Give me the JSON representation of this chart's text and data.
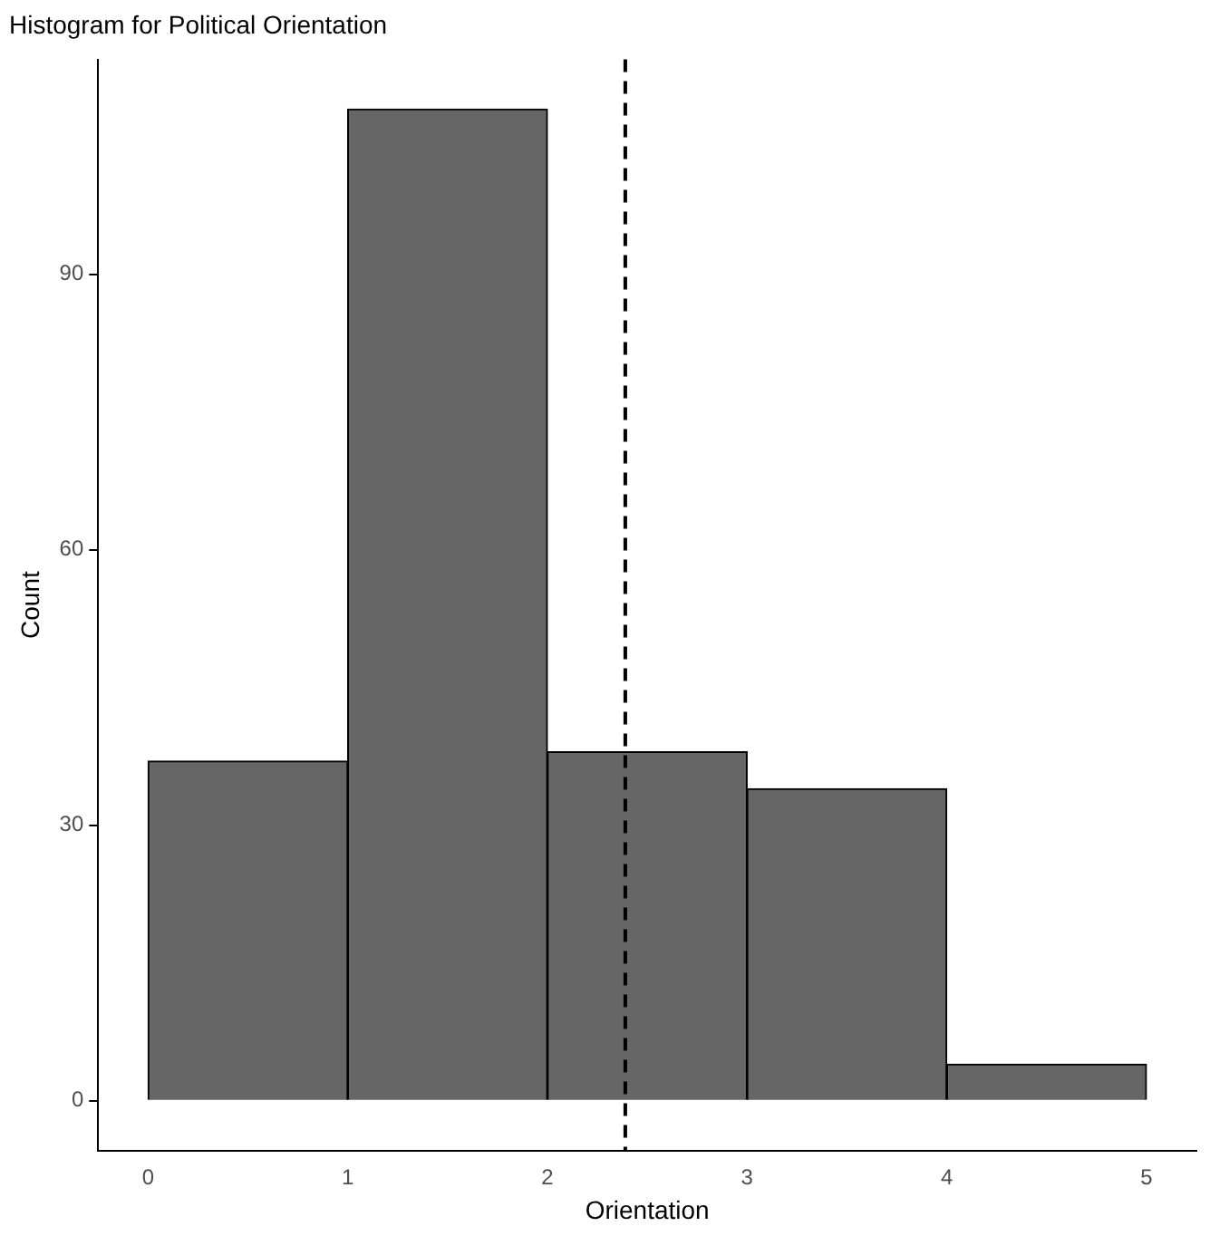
{
  "chart_data": {
    "type": "histogram",
    "title": "Histogram for Political Orientation",
    "xlabel": "Orientation",
    "ylabel": "Count",
    "bins": [
      0,
      1,
      2,
      3,
      4,
      5
    ],
    "values": [
      37,
      108,
      38,
      34,
      4
    ],
    "color": "#666666",
    "xlim": [
      -0.25,
      5.25
    ],
    "ylim": [
      -5.4,
      113.4
    ],
    "xticks": [
      0,
      1,
      2,
      3,
      4,
      5
    ],
    "yticks": [
      0,
      30,
      60,
      90
    ],
    "grid": false,
    "ref_lines": [
      {
        "axis": "x",
        "value": 2.39,
        "color": "#000000",
        "line_style": "dashed"
      }
    ]
  }
}
